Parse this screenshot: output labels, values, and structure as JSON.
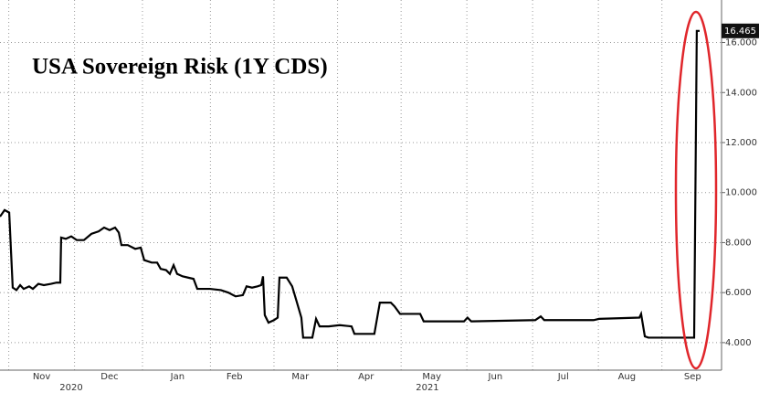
{
  "chart_data": {
    "type": "line",
    "title": "USA Sovereign Risk (1Y CDS)",
    "color": "#000000",
    "x": [
      0,
      2.1,
      4.2,
      5.8,
      7.5,
      9.2,
      10.8,
      13.3,
      15,
      17.5,
      20,
      23.3,
      25.8,
      27.5,
      27.9,
      30,
      32.5,
      35,
      38.3,
      41.7,
      45,
      47.5,
      50,
      52.5,
      54.2,
      55.4,
      58.3,
      61.7,
      64.2,
      65.8,
      69.2,
      71.7,
      73.3,
      75.8,
      77.5,
      79.2,
      80.8,
      83.3,
      85.8,
      88.3,
      90,
      95.8,
      100.8,
      104.2,
      107.5,
      110.8,
      112.5,
      115,
      117.5,
      119.2,
      120,
      120.8,
      122.5,
      125,
      126.7,
      127.5,
      130.8,
      133.3,
      135,
      137.5,
      138.3,
      142.5,
      144.2,
      145.8,
      150,
      155,
      160.4,
      161.7,
      170.8,
      173.3,
      178.3,
      180,
      182.5,
      191.7,
      193.3,
      211.7,
      213.3,
      215,
      244.2,
      246.7,
      248.3,
      270.8,
      273.3,
      291.7,
      292.5,
      294.2,
      295.8,
      300,
      308.3,
      316.7,
      317.9,
      319.2
    ],
    "values": [
      9.04,
      9.3,
      9.2,
      6.2,
      6.1,
      6.3,
      6.15,
      6.25,
      6.15,
      6.35,
      6.3,
      6.35,
      6.4,
      6.4,
      8.2,
      8.15,
      8.25,
      8.1,
      8.1,
      8.35,
      8.45,
      8.6,
      8.5,
      8.6,
      8.4,
      7.9,
      7.9,
      7.75,
      7.8,
      7.3,
      7.2,
      7.2,
      6.95,
      6.9,
      6.75,
      7.1,
      6.75,
      6.65,
      6.6,
      6.55,
      6.15,
      6.15,
      6.1,
      6.0,
      5.85,
      5.9,
      6.25,
      6.2,
      6.25,
      6.3,
      6.65,
      5.1,
      4.8,
      4.9,
      5.0,
      6.6,
      6.6,
      6.25,
      5.75,
      5.0,
      4.2,
      4.2,
      4.95,
      4.65,
      4.65,
      4.7,
      4.65,
      4.35,
      4.35,
      5.6,
      5.6,
      5.45,
      5.15,
      5.15,
      4.85,
      4.85,
      5.0,
      4.85,
      4.9,
      5.05,
      4.9,
      4.9,
      4.95,
      5.0,
      5.15,
      4.25,
      4.2,
      4.2,
      4.2,
      4.2,
      16.465,
      16.465
    ],
    "xlim": [
      0,
      329.2
    ],
    "ylim": [
      2.9,
      17.7
    ],
    "yticks": [
      {
        "value": 4,
        "label": "4.000"
      },
      {
        "value": 6,
        "label": "6.000"
      },
      {
        "value": 8,
        "label": "8.000"
      },
      {
        "value": 10,
        "label": "10.000"
      },
      {
        "value": 12,
        "label": "12.000"
      },
      {
        "value": 14,
        "label": "14.000"
      },
      {
        "value": 16,
        "label": "16.000"
      }
    ],
    "xticks": [
      {
        "value": 19,
        "label": "Nov"
      },
      {
        "value": 50,
        "label": "Dec"
      },
      {
        "value": 81,
        "label": "Jan"
      },
      {
        "value": 107,
        "label": "Feb"
      },
      {
        "value": 137,
        "label": "Mar"
      },
      {
        "value": 167,
        "label": "Apr"
      },
      {
        "value": 197,
        "label": "May"
      },
      {
        "value": 226,
        "label": "Jun"
      },
      {
        "value": 257,
        "label": "Jul"
      },
      {
        "value": 286,
        "label": "Aug"
      },
      {
        "value": 316,
        "label": "Sep"
      }
    ],
    "year_ticks": [
      {
        "value": 32.5,
        "label": "2020"
      },
      {
        "value": 195,
        "label": "2021"
      }
    ],
    "xgrid": [
      4,
      34,
      65,
      96,
      125,
      154,
      183,
      213,
      243,
      273,
      302
    ],
    "grid": true
  }
}
